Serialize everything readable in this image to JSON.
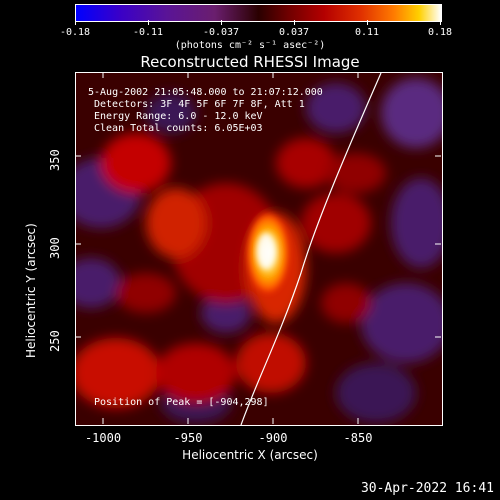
{
  "colorbar": {
    "tick_labels": [
      "-0.18",
      "-0.11",
      "-0.037",
      "0.037",
      "0.11",
      "0.18"
    ],
    "units": "(photons cm⁻² s⁻¹ asec⁻²)"
  },
  "title": "Reconstructed RHESSI Image",
  "info": {
    "line1": "5-Aug-2002 21:05:48.000 to 21:07:12.000",
    "line2": "Detectors: 3F 4F 5F 6F 7F 8F, Att 1",
    "line3": "Energy Range: 6.0 - 12.0 keV",
    "line4": "Clean    Total counts: 6.05E+03",
    "peak": "Position of Peak = [-904,298]"
  },
  "axes": {
    "xlabel": "Heliocentric X (arcsec)",
    "ylabel": "Heliocentric Y (arcsec)",
    "xticks": [
      "-1000",
      "-950",
      "-900",
      "-850"
    ],
    "yticks": [
      "350",
      "300",
      "250"
    ]
  },
  "timestamp": "30-Apr-2022 16:41",
  "colors": {
    "limb": "#ffffff",
    "background": "#000000"
  }
}
